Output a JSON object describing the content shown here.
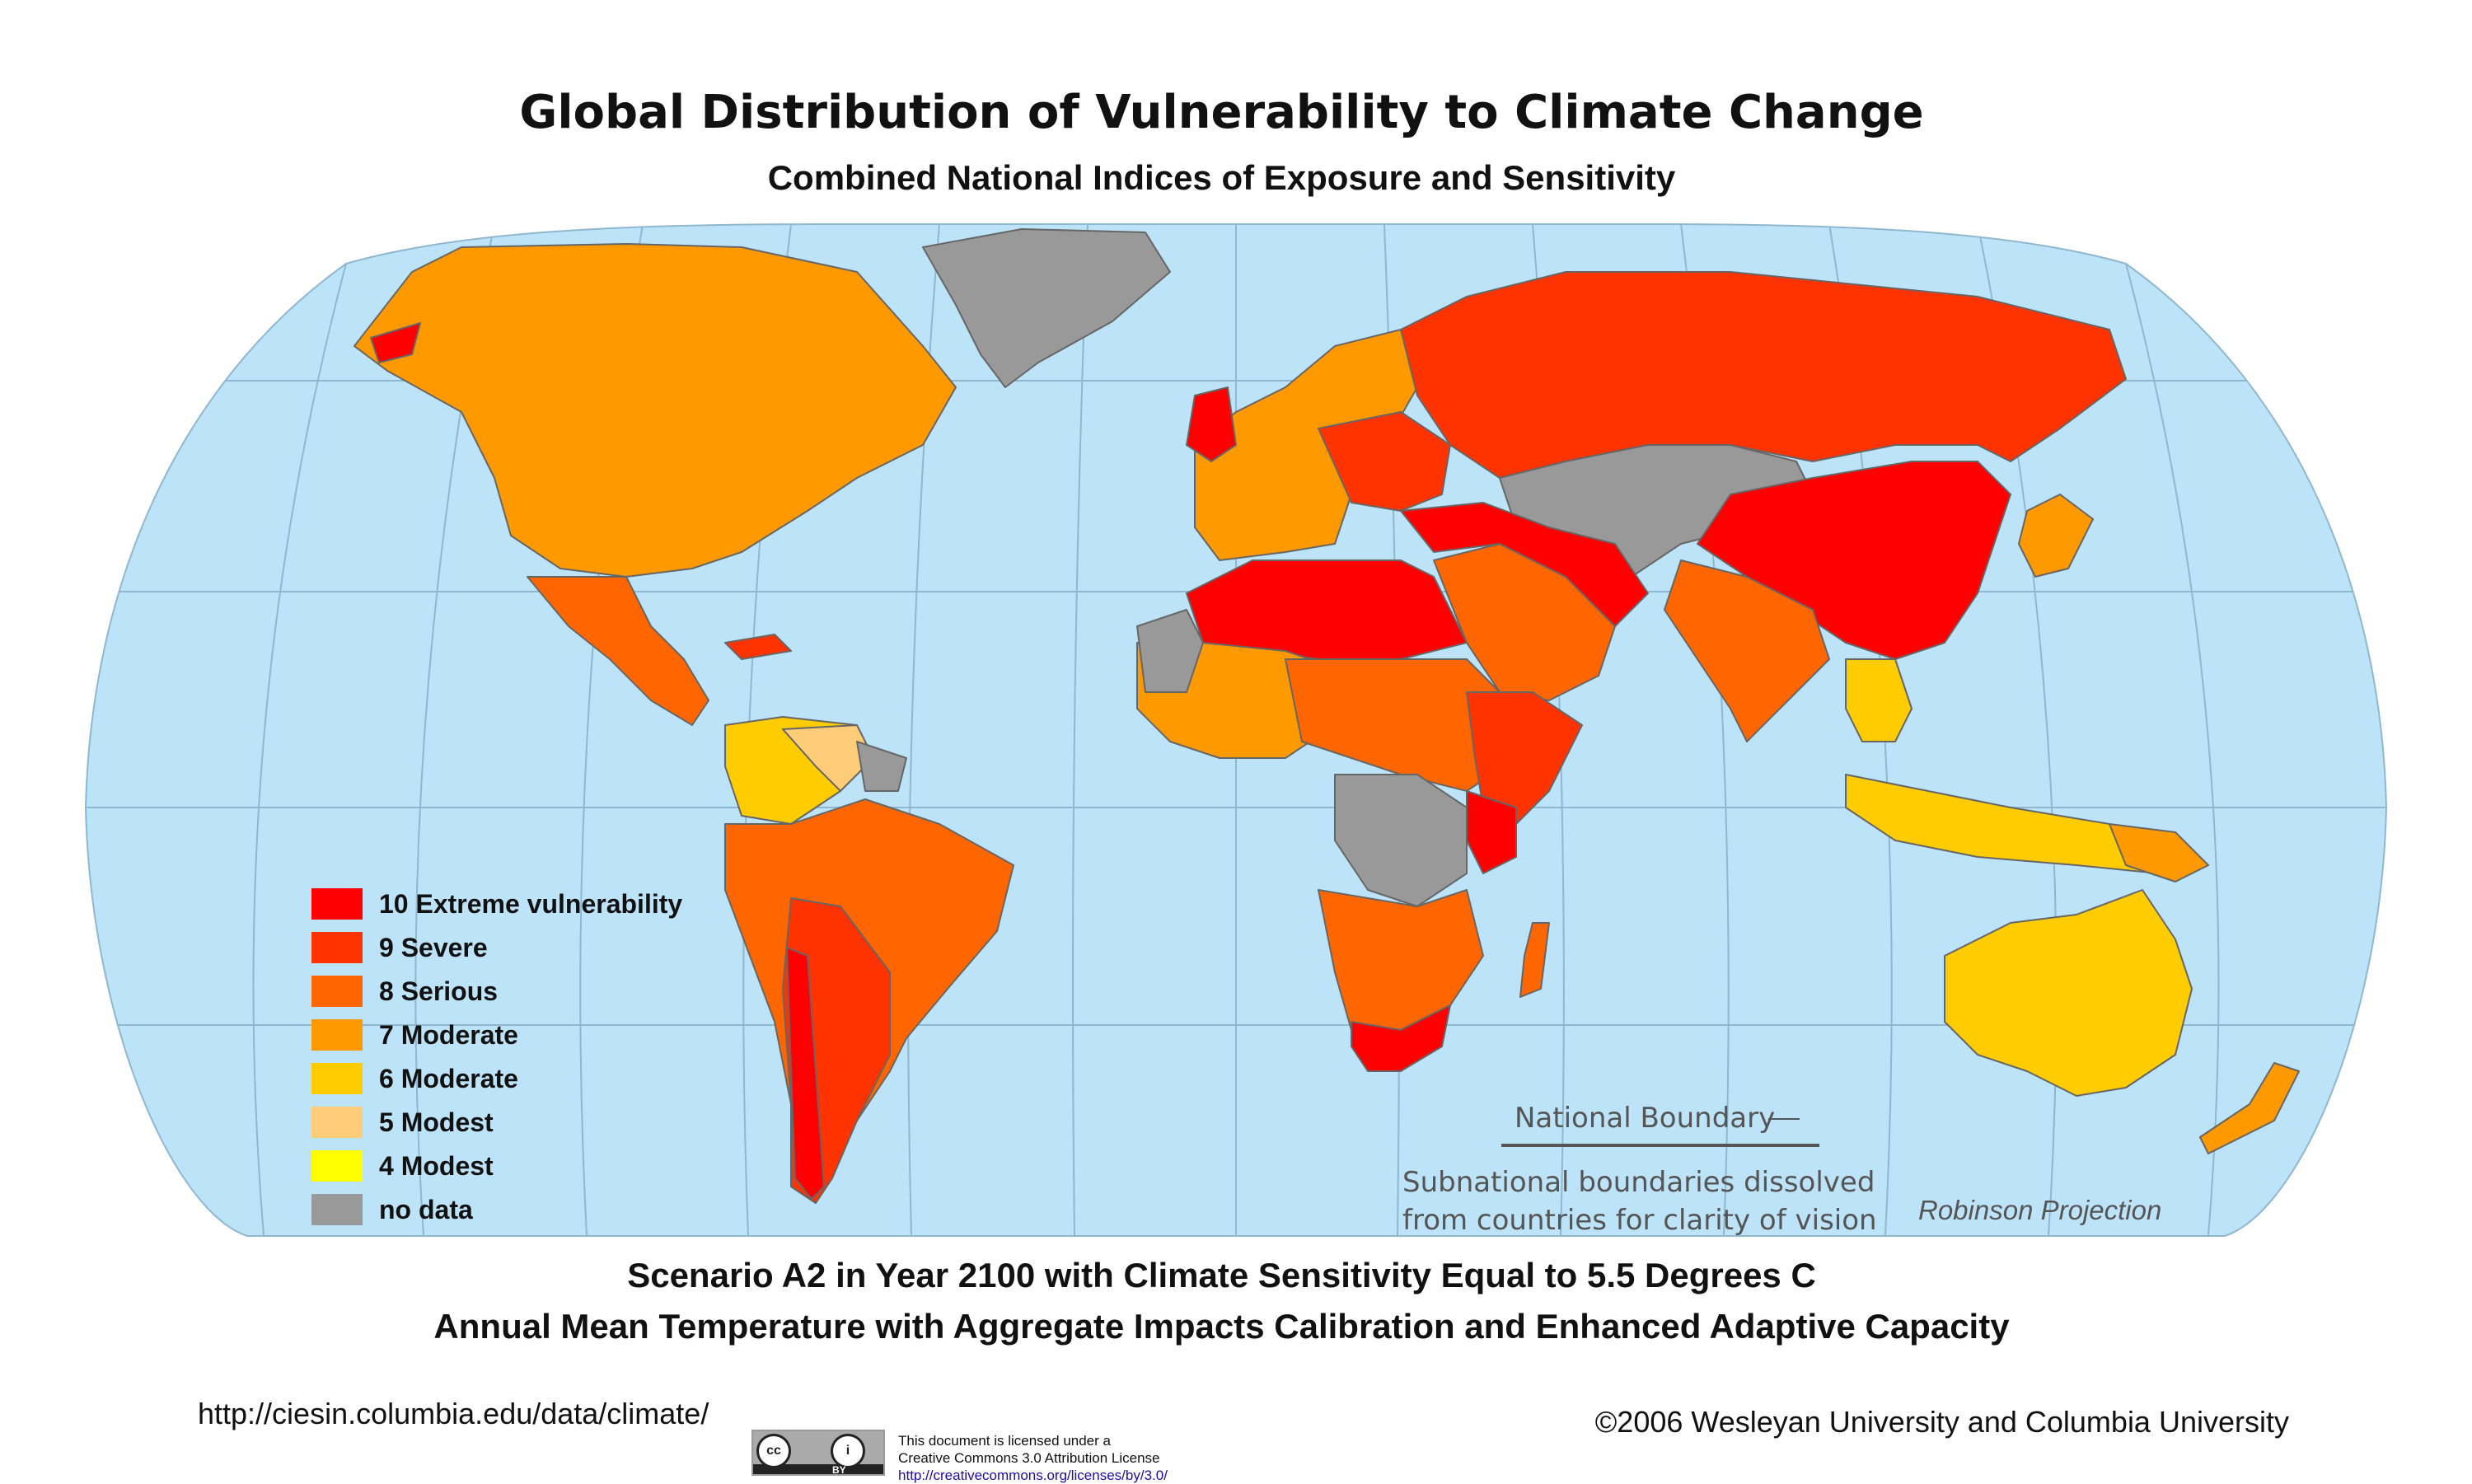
{
  "title": "Global Distribution of Vulnerability to Climate Change",
  "subtitle": "Combined National Indices of Exposure and Sensitivity",
  "legend": [
    {
      "label": "10 Extreme vulnerability",
      "color": "#ff0000"
    },
    {
      "label": "9  Severe",
      "color": "#ff3300"
    },
    {
      "label": "8  Serious",
      "color": "#ff6600"
    },
    {
      "label": "7  Moderate",
      "color": "#ff9900"
    },
    {
      "label": "6  Moderate",
      "color": "#ffcc00"
    },
    {
      "label": "5  Modest",
      "color": "#ffcc77"
    },
    {
      "label": "4  Modest",
      "color": "#ffff00"
    },
    {
      "label": "no data",
      "color": "#999999"
    }
  ],
  "map": {
    "ocean_color": "#bde3f8",
    "graticule_color": "#8fb7d0",
    "boundary_color": "#666666"
  },
  "boundary_key": {
    "label": "National Boundary",
    "note_line1": "Subnational boundaries dissolved",
    "note_line2": "from countries for clarity of vision"
  },
  "projection": "Robinson Projection",
  "scenario_line1": "Scenario A2 in Year 2100 with Climate Sensitivity Equal to 5.5 Degrees C",
  "scenario_line2": "Annual Mean Temperature with Aggregate Impacts Calibration and Enhanced Adaptive Capacity",
  "source_url": "http://ciesin.columbia.edu/data/climate/",
  "copyright": "©2006 Wesleyan University and Columbia University",
  "license": {
    "line1": "This document is licensed under a",
    "line2": "Creative Commons 3.0 Attribution License",
    "link": "http://creativecommons.org/licenses/by/3.0/",
    "badge_cc": "cc",
    "badge_info": "i",
    "badge_by": "BY"
  }
}
